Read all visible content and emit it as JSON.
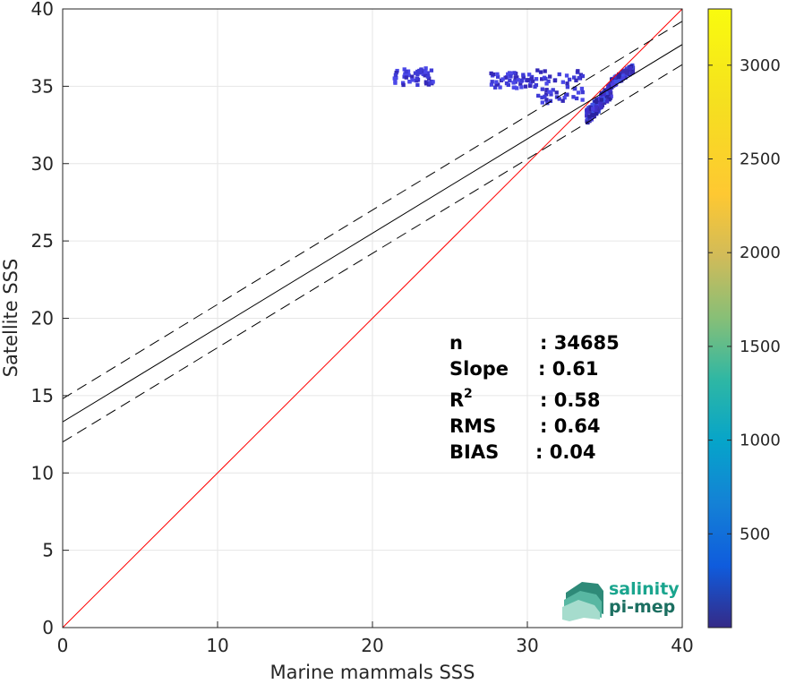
{
  "chart_data": {
    "type": "heatmap",
    "xlabel": "Marine mammals SSS",
    "ylabel": "Satellite SSS",
    "xlim": [
      0,
      40
    ],
    "ylim": [
      0,
      40
    ],
    "xticks": [
      0,
      10,
      20,
      30,
      40
    ],
    "yticks": [
      0,
      5,
      10,
      15,
      20,
      25,
      30,
      35,
      40
    ],
    "grid": true,
    "colorbar": {
      "min": 0,
      "max": 3300,
      "ticks": [
        500,
        1000,
        1500,
        2000,
        2500,
        3000
      ],
      "colormap": "parula"
    },
    "lines": [
      {
        "role": "identity",
        "style": "solid",
        "color": "#ff0000",
        "x": [
          0,
          40
        ],
        "y": [
          0,
          40
        ]
      },
      {
        "role": "regression",
        "style": "solid",
        "color": "#000000",
        "x": [
          0,
          40
        ],
        "y": [
          13.3,
          37.7
        ]
      },
      {
        "role": "regression-upper",
        "style": "dashed",
        "color": "#000000",
        "x": [
          0,
          40
        ],
        "y": [
          14.8,
          39.2
        ]
      },
      {
        "role": "regression-lower",
        "style": "dashed",
        "color": "#000000",
        "x": [
          0,
          40
        ],
        "y": [
          12.0,
          36.4
        ]
      }
    ],
    "density_clusters": [
      {
        "x": [
          33.7,
          35.3
        ],
        "y": [
          33.1,
          34.9
        ],
        "level": "dense"
      },
      {
        "x": [
          35.3,
          36.7
        ],
        "y": [
          35.3,
          36.3
        ],
        "level": "dense"
      },
      {
        "x": [
          27.5,
          30.5
        ],
        "y": [
          35.0,
          36.0
        ],
        "level": "sparse"
      },
      {
        "x": [
          21.3,
          23.8
        ],
        "y": [
          35.2,
          36.3
        ],
        "level": "sparse"
      },
      {
        "x": [
          30.5,
          33.5
        ],
        "y": [
          34.0,
          36.2
        ],
        "level": "sparse"
      }
    ],
    "stats": [
      {
        "label": "n",
        "value": ": 34685"
      },
      {
        "label": "Slope",
        "value": ": 0.61"
      },
      {
        "label": "R",
        "sup": "2",
        "value": ": 0.58"
      },
      {
        "label": "RMS",
        "value": ": 0.64"
      },
      {
        "label": "BIAS",
        "value": ": 0.04"
      }
    ]
  },
  "logo": {
    "line1": "salinity",
    "line2": "pi-mep"
  }
}
